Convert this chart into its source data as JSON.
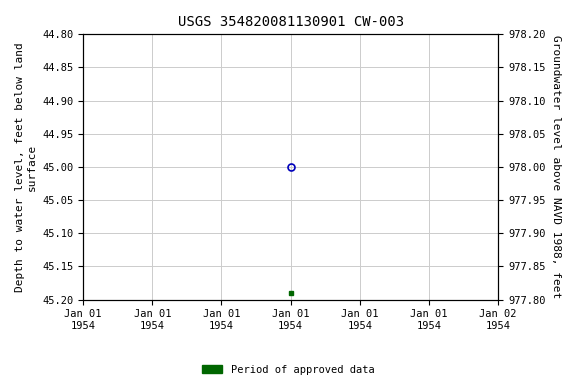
{
  "title": "USGS 354820081130901 CW-003",
  "left_ylabel": "Depth to water level, feet below land\nsurface",
  "right_ylabel": "Groundwater level above NAVD 1988, feet",
  "ylim_left": [
    44.8,
    45.2
  ],
  "ylim_right": [
    977.8,
    978.2
  ],
  "yticks_left": [
    44.8,
    44.85,
    44.9,
    44.95,
    45.0,
    45.05,
    45.1,
    45.15,
    45.2
  ],
  "yticks_right": [
    977.8,
    977.85,
    977.9,
    977.95,
    978.0,
    978.05,
    978.1,
    978.15,
    978.2
  ],
  "data_blue_x": 45.0,
  "data_blue_depth": 45.0,
  "data_green_x": 45.0,
  "data_green_depth": 45.19,
  "legend_label": "Period of approved data",
  "bg_color": "#ffffff",
  "grid_color": "#cccccc",
  "blue_color": "#0000bb",
  "green_color": "#006600",
  "title_fontsize": 10,
  "axis_fontsize": 8,
  "tick_fontsize": 7.5,
  "xmin": 0.0,
  "xmax": 90.0,
  "xtick_positions": [
    0,
    15,
    30,
    45,
    60,
    75,
    90
  ],
  "xtick_labels": [
    "Jan 01\n1954",
    "Jan 01\n1954",
    "Jan 01\n1954",
    "Jan 01\n1954",
    "Jan 01\n1954",
    "Jan 01\n1954",
    "Jan 02\n1954"
  ]
}
